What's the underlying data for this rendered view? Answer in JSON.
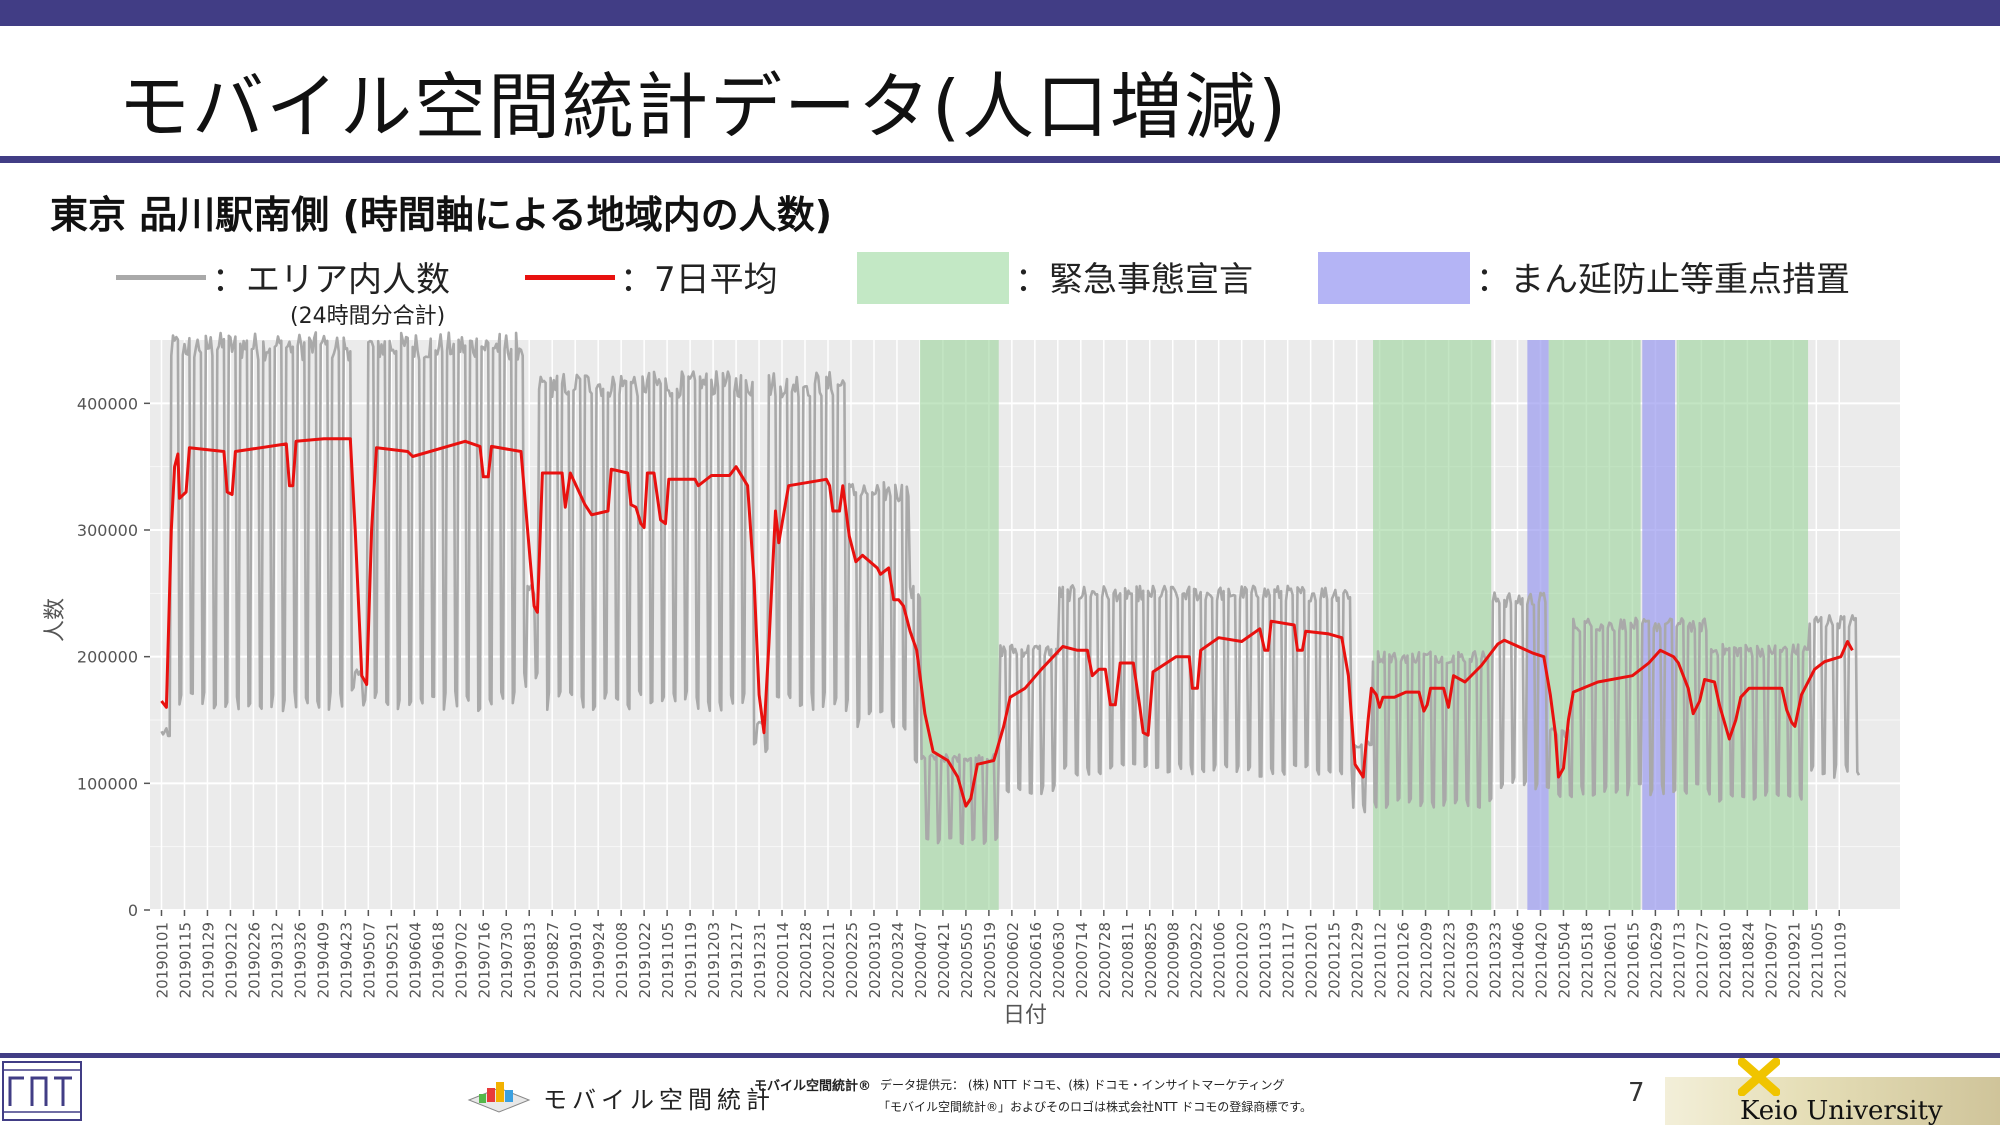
{
  "header": {
    "title": "モバイル空間統計データ(人口増減)",
    "subtitle": "東京 品川駅南側 (時間軸による地域内の人数)"
  },
  "legend": {
    "area_label": "：エリア内人数",
    "area_note": "(24時間分合計)",
    "avg_label": "：7日平均",
    "emergency_label": "：緊急事態宣言",
    "priority_label": "：まん延防止等重点措置"
  },
  "colors": {
    "accent": "#413d85",
    "raw_series": "#a9a9a9",
    "avg_series": "#e8110f",
    "emergency": "#9bd39b",
    "priority": "#9a9af0",
    "plot_bg": "#ebebeb"
  },
  "footer": {
    "mobile_logo_text": "モバイル空間統計",
    "mobile_tm": "モバイル空間統計®",
    "credit_line1": "データ提供元： (株) NTT ドコモ、(株) ドコモ・インサイトマーケティング",
    "credit_line2": "「モバイル空間統計®」およびそのロゴは株式会社NTT ドコモの登録商標です。",
    "page_number": "7",
    "university": "Keio University"
  },
  "chart_data": {
    "type": "line",
    "xlabel": "日付",
    "ylabel": "人数",
    "ylim": [
      0,
      450000
    ],
    "xlim": [
      "2018-12-25",
      "2021-11-25"
    ],
    "y_ticks": [
      0,
      100000,
      200000,
      300000,
      400000
    ],
    "y_tick_labels": [
      "0",
      "100000",
      "200000",
      "300000",
      "400000"
    ],
    "x_tick_labels": [
      "20190101",
      "20190115",
      "20190129",
      "20190212",
      "20190226",
      "20190312",
      "20190326",
      "20190409",
      "20190423",
      "20190507",
      "20190521",
      "20190604",
      "20190618",
      "20190702",
      "20190716",
      "20190730",
      "20190813",
      "20190827",
      "20190910",
      "20190924",
      "20191008",
      "20191022",
      "20191105",
      "20191119",
      "20191203",
      "20191217",
      "20191231",
      "20200114",
      "20200128",
      "20200211",
      "20200225",
      "20200310",
      "20200324",
      "20200407",
      "20200421",
      "20200505",
      "20200519",
      "20200602",
      "20200616",
      "20200630",
      "20200714",
      "20200728",
      "20200811",
      "20200825",
      "20200908",
      "20200922",
      "20201006",
      "20201020",
      "20201103",
      "20201117",
      "20201201",
      "20201215",
      "20201229",
      "20210112",
      "20210126",
      "20210209",
      "20210223",
      "20210309",
      "20210323",
      "20210406",
      "20210420",
      "20210504",
      "20210518",
      "20210601",
      "20210615",
      "20210629",
      "20210713",
      "20210727",
      "20210810",
      "20210824",
      "20210907",
      "20210921",
      "20211005",
      "20211019"
    ],
    "shaded_periods": [
      {
        "type": "emergency",
        "start": "2020-04-07",
        "end": "2020-05-25"
      },
      {
        "type": "emergency",
        "start": "2021-01-08",
        "end": "2021-03-21"
      },
      {
        "type": "priority",
        "start": "2021-04-12",
        "end": "2021-04-25"
      },
      {
        "type": "emergency",
        "start": "2021-04-25",
        "end": "2021-06-20"
      },
      {
        "type": "priority",
        "start": "2021-06-21",
        "end": "2021-07-11"
      },
      {
        "type": "emergency",
        "start": "2021-07-12",
        "end": "2021-09-30"
      }
    ],
    "series": [
      {
        "name": "エリア内人数",
        "kind": "daily",
        "segments": [
          {
            "start": "2019-01-01",
            "end": "2019-01-06",
            "weekday": 140000,
            "weekend": 135000
          },
          {
            "start": "2019-01-07",
            "end": "2019-04-26",
            "weekday": 445000,
            "weekend": 165000
          },
          {
            "start": "2019-04-27",
            "end": "2019-05-06",
            "weekday": 185000,
            "weekend": 170000
          },
          {
            "start": "2019-05-07",
            "end": "2019-08-09",
            "weekday": 445000,
            "weekend": 165000
          },
          {
            "start": "2019-08-10",
            "end": "2019-08-18",
            "weekday": 250000,
            "weekend": 180000
          },
          {
            "start": "2019-08-19",
            "end": "2019-12-27",
            "weekday": 415000,
            "weekend": 165000
          },
          {
            "start": "2019-12-28",
            "end": "2020-01-05",
            "weekday": 150000,
            "weekend": 130000
          },
          {
            "start": "2020-01-06",
            "end": "2020-02-23",
            "weekday": 415000,
            "weekend": 165000
          },
          {
            "start": "2020-02-24",
            "end": "2020-03-31",
            "weekday": 330000,
            "weekend": 150000
          },
          {
            "start": "2020-04-01",
            "end": "2020-04-07",
            "weekday": 250000,
            "weekend": 120000
          },
          {
            "start": "2020-04-08",
            "end": "2020-05-25",
            "weekday": 120000,
            "weekend": 55000
          },
          {
            "start": "2020-05-26",
            "end": "2020-06-30",
            "weekday": 205000,
            "weekend": 95000
          },
          {
            "start": "2020-07-01",
            "end": "2020-12-26",
            "weekday": 250000,
            "weekend": 110000
          },
          {
            "start": "2020-12-27",
            "end": "2021-01-07",
            "weekday": 130000,
            "weekend": 80000
          },
          {
            "start": "2021-01-08",
            "end": "2021-03-21",
            "weekday": 200000,
            "weekend": 85000
          },
          {
            "start": "2021-03-22",
            "end": "2021-04-25",
            "weekday": 245000,
            "weekend": 100000
          },
          {
            "start": "2021-04-26",
            "end": "2021-05-09",
            "weekday": 140000,
            "weekend": 90000
          },
          {
            "start": "2021-05-10",
            "end": "2021-07-31",
            "weekday": 225000,
            "weekend": 95000
          },
          {
            "start": "2021-08-01",
            "end": "2021-09-30",
            "weekday": 205000,
            "weekend": 90000
          },
          {
            "start": "2021-10-01",
            "end": "2021-10-31",
            "weekday": 228000,
            "weekend": 110000
          }
        ]
      },
      {
        "name": "7日平均",
        "kind": "smoothed",
        "points": [
          [
            "2019-01-01",
            165000
          ],
          [
            "2019-01-04",
            160000
          ],
          [
            "2019-01-07",
            300000
          ],
          [
            "2019-01-09",
            350000
          ],
          [
            "2019-01-11",
            360000
          ],
          [
            "2019-01-12",
            325000
          ],
          [
            "2019-01-16",
            330000
          ],
          [
            "2019-01-18",
            365000
          ],
          [
            "2019-02-08",
            362000
          ],
          [
            "2019-02-10",
            330000
          ],
          [
            "2019-02-13",
            328000
          ],
          [
            "2019-02-15",
            362000
          ],
          [
            "2019-03-18",
            368000
          ],
          [
            "2019-03-20",
            335000
          ],
          [
            "2019-03-22",
            335000
          ],
          [
            "2019-03-24",
            370000
          ],
          [
            "2019-04-10",
            372000
          ],
          [
            "2019-04-26",
            372000
          ],
          [
            "2019-04-29",
            300000
          ],
          [
            "2019-05-03",
            185000
          ],
          [
            "2019-05-06",
            178000
          ],
          [
            "2019-05-09",
            300000
          ],
          [
            "2019-05-12",
            365000
          ],
          [
            "2019-05-31",
            362000
          ],
          [
            "2019-06-03",
            358000
          ],
          [
            "2019-07-05",
            370000
          ],
          [
            "2019-07-14",
            366000
          ],
          [
            "2019-07-16",
            342000
          ],
          [
            "2019-07-19",
            342000
          ],
          [
            "2019-07-21",
            366000
          ],
          [
            "2019-08-08",
            362000
          ],
          [
            "2019-08-12",
            300000
          ],
          [
            "2019-08-16",
            240000
          ],
          [
            "2019-08-18",
            235000
          ],
          [
            "2019-08-21",
            345000
          ],
          [
            "2019-09-02",
            345000
          ],
          [
            "2019-09-04",
            318000
          ],
          [
            "2019-09-07",
            345000
          ],
          [
            "2019-09-16",
            320000
          ],
          [
            "2019-09-20",
            312000
          ],
          [
            "2019-09-30",
            315000
          ],
          [
            "2019-10-02",
            348000
          ],
          [
            "2019-10-12",
            345000
          ],
          [
            "2019-10-14",
            320000
          ],
          [
            "2019-10-17",
            318000
          ],
          [
            "2019-10-20",
            305000
          ],
          [
            "2019-10-22",
            302000
          ],
          [
            "2019-10-24",
            345000
          ],
          [
            "2019-10-28",
            345000
          ],
          [
            "2019-11-01",
            308000
          ],
          [
            "2019-11-04",
            305000
          ],
          [
            "2019-11-06",
            340000
          ],
          [
            "2019-11-22",
            340000
          ],
          [
            "2019-11-24",
            335000
          ],
          [
            "2019-12-02",
            343000
          ],
          [
            "2019-12-13",
            343000
          ],
          [
            "2019-12-17",
            350000
          ],
          [
            "2019-12-24",
            335000
          ],
          [
            "2019-12-28",
            260000
          ],
          [
            "2019-12-31",
            170000
          ],
          [
            "2020-01-03",
            140000
          ],
          [
            "2020-01-06",
            210000
          ],
          [
            "2020-01-10",
            315000
          ],
          [
            "2020-01-12",
            290000
          ],
          [
            "2020-01-14",
            305000
          ],
          [
            "2020-01-18",
            335000
          ],
          [
            "2020-02-10",
            340000
          ],
          [
            "2020-02-12",
            335000
          ],
          [
            "2020-02-14",
            315000
          ],
          [
            "2020-02-18",
            315000
          ],
          [
            "2020-02-20",
            335000
          ],
          [
            "2020-02-24",
            295000
          ],
          [
            "2020-02-28",
            275000
          ],
          [
            "2020-03-03",
            280000
          ],
          [
            "2020-03-12",
            270000
          ],
          [
            "2020-03-14",
            265000
          ],
          [
            "2020-03-19",
            270000
          ],
          [
            "2020-03-22",
            245000
          ],
          [
            "2020-03-25",
            245000
          ],
          [
            "2020-03-28",
            240000
          ],
          [
            "2020-04-01",
            220000
          ],
          [
            "2020-04-05",
            205000
          ],
          [
            "2020-04-10",
            155000
          ],
          [
            "2020-04-15",
            125000
          ],
          [
            "2020-04-24",
            118000
          ],
          [
            "2020-04-30",
            105000
          ],
          [
            "2020-05-05",
            82000
          ],
          [
            "2020-05-08",
            88000
          ],
          [
            "2020-05-12",
            115000
          ],
          [
            "2020-05-22",
            118000
          ],
          [
            "2020-05-28",
            145000
          ],
          [
            "2020-06-01",
            168000
          ],
          [
            "2020-06-10",
            175000
          ],
          [
            "2020-06-20",
            190000
          ],
          [
            "2020-07-03",
            208000
          ],
          [
            "2020-07-12",
            205000
          ],
          [
            "2020-07-18",
            205000
          ],
          [
            "2020-07-21",
            185000
          ],
          [
            "2020-07-25",
            190000
          ],
          [
            "2020-07-29",
            190000
          ],
          [
            "2020-08-01",
            162000
          ],
          [
            "2020-08-04",
            162000
          ],
          [
            "2020-08-07",
            195000
          ],
          [
            "2020-08-15",
            195000
          ],
          [
            "2020-08-19",
            160000
          ],
          [
            "2020-08-21",
            140000
          ],
          [
            "2020-08-24",
            138000
          ],
          [
            "2020-08-27",
            188000
          ],
          [
            "2020-09-10",
            200000
          ],
          [
            "2020-09-18",
            200000
          ],
          [
            "2020-09-20",
            175000
          ],
          [
            "2020-09-23",
            175000
          ],
          [
            "2020-09-25",
            205000
          ],
          [
            "2020-10-06",
            215000
          ],
          [
            "2020-10-20",
            212000
          ],
          [
            "2020-10-31",
            222000
          ],
          [
            "2020-11-03",
            205000
          ],
          [
            "2020-11-05",
            205000
          ],
          [
            "2020-11-07",
            228000
          ],
          [
            "2020-11-21",
            225000
          ],
          [
            "2020-11-23",
            205000
          ],
          [
            "2020-11-26",
            205000
          ],
          [
            "2020-11-28",
            220000
          ],
          [
            "2020-12-12",
            218000
          ],
          [
            "2020-12-20",
            215000
          ],
          [
            "2020-12-24",
            185000
          ],
          [
            "2020-12-28",
            115000
          ],
          [
            "2021-01-02",
            105000
          ],
          [
            "2021-01-05",
            150000
          ],
          [
            "2021-01-07",
            175000
          ],
          [
            "2021-01-10",
            170000
          ],
          [
            "2021-01-12",
            160000
          ],
          [
            "2021-01-14",
            168000
          ],
          [
            "2021-01-21",
            168000
          ],
          [
            "2021-01-28",
            172000
          ],
          [
            "2021-02-05",
            172000
          ],
          [
            "2021-02-08",
            157000
          ],
          [
            "2021-02-10",
            162000
          ],
          [
            "2021-02-12",
            175000
          ],
          [
            "2021-02-20",
            175000
          ],
          [
            "2021-02-23",
            160000
          ],
          [
            "2021-02-26",
            185000
          ],
          [
            "2021-03-05",
            180000
          ],
          [
            "2021-03-15",
            193000
          ],
          [
            "2021-03-25",
            210000
          ],
          [
            "2021-03-29",
            213000
          ],
          [
            "2021-04-15",
            203000
          ],
          [
            "2021-04-22",
            200000
          ],
          [
            "2021-04-26",
            170000
          ],
          [
            "2021-04-29",
            140000
          ],
          [
            "2021-05-01",
            105000
          ],
          [
            "2021-05-04",
            112000
          ],
          [
            "2021-05-07",
            150000
          ],
          [
            "2021-05-10",
            172000
          ],
          [
            "2021-05-25",
            180000
          ],
          [
            "2021-06-15",
            185000
          ],
          [
            "2021-06-25",
            195000
          ],
          [
            "2021-07-02",
            205000
          ],
          [
            "2021-07-10",
            200000
          ],
          [
            "2021-07-13",
            195000
          ],
          [
            "2021-07-19",
            175000
          ],
          [
            "2021-07-22",
            155000
          ],
          [
            "2021-07-26",
            165000
          ],
          [
            "2021-07-29",
            182000
          ],
          [
            "2021-08-04",
            180000
          ],
          [
            "2021-08-07",
            162000
          ],
          [
            "2021-08-13",
            135000
          ],
          [
            "2021-08-17",
            150000
          ],
          [
            "2021-08-20",
            168000
          ],
          [
            "2021-08-25",
            175000
          ],
          [
            "2021-09-14",
            175000
          ],
          [
            "2021-09-17",
            158000
          ],
          [
            "2021-09-20",
            148000
          ],
          [
            "2021-09-22",
            145000
          ],
          [
            "2021-09-26",
            170000
          ],
          [
            "2021-10-04",
            190000
          ],
          [
            "2021-10-10",
            196000
          ],
          [
            "2021-10-20",
            200000
          ],
          [
            "2021-10-24",
            212000
          ],
          [
            "2021-10-27",
            205000
          ]
        ]
      }
    ]
  }
}
